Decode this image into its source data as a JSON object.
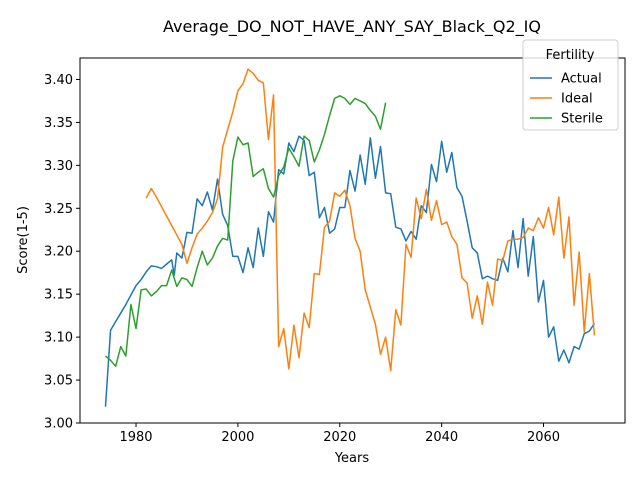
{
  "chart_data": {
    "type": "line",
    "title": "Average_DO_NOT_HAVE_ANY_SAY_Black_Q2_IQ",
    "xlabel": "Years",
    "ylabel": "Score(1-5)",
    "xlim": [
      1969,
      2076
    ],
    "ylim": [
      3.0,
      3.425
    ],
    "xticks": [
      1980,
      2000,
      2020,
      2040,
      2060
    ],
    "yticks": [
      3.0,
      3.05,
      3.1,
      3.15,
      3.2,
      3.25,
      3.3,
      3.35,
      3.4
    ],
    "grid": false,
    "legend": {
      "title": "Fertility",
      "placement": "top-right"
    },
    "series": [
      {
        "name": "Actual",
        "color": "#1f77b4",
        "points": [
          [
            1974,
            3.019
          ],
          [
            1975,
            3.108
          ],
          [
            1976,
            3.118
          ],
          [
            1977,
            3.128
          ],
          [
            1978,
            3.138
          ],
          [
            1979,
            3.149
          ],
          [
            1980,
            3.16
          ],
          [
            1981,
            3.167
          ],
          [
            1982,
            3.176
          ],
          [
            1983,
            3.183
          ],
          [
            1984,
            3.182
          ],
          [
            1985,
            3.18
          ],
          [
            1986,
            3.185
          ],
          [
            1987,
            3.19
          ],
          [
            1987.5,
            3.172
          ],
          [
            1988,
            3.198
          ],
          [
            1989,
            3.192
          ],
          [
            1990,
            3.222
          ],
          [
            1991,
            3.221
          ],
          [
            1992,
            3.261
          ],
          [
            1993,
            3.253
          ],
          [
            1994,
            3.269
          ],
          [
            1995,
            3.248
          ],
          [
            1996,
            3.284
          ],
          [
            1997,
            3.243
          ],
          [
            1998,
            3.23
          ],
          [
            1999,
            3.194
          ],
          [
            2000,
            3.194
          ],
          [
            2001,
            3.175
          ],
          [
            2002,
            3.204
          ],
          [
            2003,
            3.181
          ],
          [
            2004,
            3.227
          ],
          [
            2005,
            3.194
          ],
          [
            2006,
            3.246
          ],
          [
            2007,
            3.234
          ],
          [
            2008,
            3.295
          ],
          [
            2009,
            3.29
          ],
          [
            2010,
            3.326
          ],
          [
            2011,
            3.316
          ],
          [
            2012,
            3.334
          ],
          [
            2013,
            3.329
          ],
          [
            2014,
            3.288
          ],
          [
            2015,
            3.292
          ],
          [
            2016,
            3.239
          ],
          [
            2017,
            3.251
          ],
          [
            2018,
            3.221
          ],
          [
            2019,
            3.226
          ],
          [
            2020,
            3.251
          ],
          [
            2021,
            3.251
          ],
          [
            2022,
            3.294
          ],
          [
            2023,
            3.27
          ],
          [
            2024,
            3.312
          ],
          [
            2025,
            3.278
          ],
          [
            2026,
            3.332
          ],
          [
            2027,
            3.285
          ],
          [
            2028,
            3.322
          ],
          [
            2029,
            3.268
          ],
          [
            2030,
            3.267
          ],
          [
            2031,
            3.228
          ],
          [
            2032,
            3.226
          ],
          [
            2033,
            3.212
          ],
          [
            2034,
            3.223
          ],
          [
            2035,
            3.214
          ],
          [
            2036,
            3.253
          ],
          [
            2037,
            3.245
          ],
          [
            2038,
            3.301
          ],
          [
            2039,
            3.281
          ],
          [
            2040,
            3.328
          ],
          [
            2041,
            3.292
          ],
          [
            2042,
            3.315
          ],
          [
            2043,
            3.274
          ],
          [
            2044,
            3.264
          ],
          [
            2045,
            3.235
          ],
          [
            2046,
            3.204
          ],
          [
            2047,
            3.198
          ],
          [
            2048,
            3.168
          ],
          [
            2049,
            3.171
          ],
          [
            2050,
            3.168
          ],
          [
            2051,
            3.166
          ],
          [
            2052,
            3.192
          ],
          [
            2053,
            3.176
          ],
          [
            2054,
            3.224
          ],
          [
            2055,
            3.181
          ],
          [
            2056,
            3.238
          ],
          [
            2057,
            3.171
          ],
          [
            2058,
            3.217
          ],
          [
            2059,
            3.141
          ],
          [
            2060,
            3.166
          ],
          [
            2061,
            3.1
          ],
          [
            2062,
            3.112
          ],
          [
            2063,
            3.072
          ],
          [
            2064,
            3.085
          ],
          [
            2065,
            3.07
          ],
          [
            2066,
            3.089
          ],
          [
            2067,
            3.086
          ],
          [
            2068,
            3.104
          ],
          [
            2069,
            3.107
          ],
          [
            2070,
            3.116
          ]
        ]
      },
      {
        "name": "Ideal",
        "color": "#ff7f0e",
        "points": [
          [
            1982,
            3.262
          ],
          [
            1983,
            3.273
          ],
          [
            1984,
            3.263
          ],
          [
            1985,
            3.252
          ],
          [
            1986,
            3.241
          ],
          [
            1987,
            3.23
          ],
          [
            1988,
            3.219
          ],
          [
            1989,
            3.208
          ],
          [
            1990,
            3.186
          ],
          [
            1991,
            3.204
          ],
          [
            1992,
            3.22
          ],
          [
            1993,
            3.227
          ],
          [
            1994,
            3.235
          ],
          [
            1995,
            3.245
          ],
          [
            1996,
            3.261
          ],
          [
            1997,
            3.321
          ],
          [
            1998,
            3.342
          ],
          [
            1999,
            3.362
          ],
          [
            2000,
            3.387
          ],
          [
            2001,
            3.395
          ],
          [
            2002,
            3.412
          ],
          [
            2003,
            3.407
          ],
          [
            2004,
            3.399
          ],
          [
            2005,
            3.396
          ],
          [
            2006,
            3.33
          ],
          [
            2007,
            3.382
          ],
          [
            2008,
            3.089
          ],
          [
            2009,
            3.11
          ],
          [
            2010,
            3.063
          ],
          [
            2011,
            3.114
          ],
          [
            2012,
            3.076
          ],
          [
            2013,
            3.128
          ],
          [
            2014,
            3.111
          ],
          [
            2015,
            3.174
          ],
          [
            2016,
            3.173
          ],
          [
            2017,
            3.228
          ],
          [
            2018,
            3.235
          ],
          [
            2019,
            3.268
          ],
          [
            2020,
            3.264
          ],
          [
            2021,
            3.271
          ],
          [
            2022,
            3.253
          ],
          [
            2023,
            3.215
          ],
          [
            2024,
            3.2
          ],
          [
            2025,
            3.155
          ],
          [
            2026,
            3.135
          ],
          [
            2027,
            3.115
          ],
          [
            2028,
            3.08
          ],
          [
            2029,
            3.1
          ],
          [
            2030,
            3.061
          ],
          [
            2031,
            3.132
          ],
          [
            2032,
            3.114
          ],
          [
            2033,
            3.208
          ],
          [
            2034,
            3.193
          ],
          [
            2035,
            3.262
          ],
          [
            2036,
            3.238
          ],
          [
            2037,
            3.272
          ],
          [
            2038,
            3.236
          ],
          [
            2039,
            3.259
          ],
          [
            2040,
            3.231
          ],
          [
            2041,
            3.234
          ],
          [
            2042,
            3.217
          ],
          [
            2043,
            3.208
          ],
          [
            2044,
            3.169
          ],
          [
            2045,
            3.163
          ],
          [
            2046,
            3.122
          ],
          [
            2047,
            3.148
          ],
          [
            2048,
            3.115
          ],
          [
            2049,
            3.164
          ],
          [
            2050,
            3.137
          ],
          [
            2051,
            3.191
          ],
          [
            2052,
            3.189
          ],
          [
            2053,
            3.212
          ],
          [
            2054,
            3.214
          ],
          [
            2055,
            3.214
          ],
          [
            2056,
            3.216
          ],
          [
            2057,
            3.227
          ],
          [
            2058,
            3.224
          ],
          [
            2059,
            3.239
          ],
          [
            2060,
            3.227
          ],
          [
            2061,
            3.251
          ],
          [
            2062,
            3.219
          ],
          [
            2063,
            3.263
          ],
          [
            2064,
            3.192
          ],
          [
            2065,
            3.24
          ],
          [
            2066,
            3.137
          ],
          [
            2067,
            3.199
          ],
          [
            2068,
            3.106
          ],
          [
            2069,
            3.174
          ],
          [
            2070,
            3.102
          ]
        ]
      },
      {
        "name": "Sterile",
        "color": "#2ca02c",
        "points": [
          [
            1974,
            3.078
          ],
          [
            1975,
            3.073
          ],
          [
            1976,
            3.066
          ],
          [
            1977,
            3.089
          ],
          [
            1978,
            3.078
          ],
          [
            1979,
            3.138
          ],
          [
            1980,
            3.11
          ],
          [
            1981,
            3.155
          ],
          [
            1982,
            3.156
          ],
          [
            1983,
            3.148
          ],
          [
            1984,
            3.153
          ],
          [
            1985,
            3.16
          ],
          [
            1986,
            3.16
          ],
          [
            1987,
            3.178
          ],
          [
            1988,
            3.159
          ],
          [
            1989,
            3.169
          ],
          [
            1990,
            3.167
          ],
          [
            1991,
            3.159
          ],
          [
            1992,
            3.181
          ],
          [
            1993,
            3.2
          ],
          [
            1994,
            3.184
          ],
          [
            1995,
            3.192
          ],
          [
            1996,
            3.206
          ],
          [
            1997,
            3.215
          ],
          [
            1998,
            3.213
          ],
          [
            1999,
            3.305
          ],
          [
            2000,
            3.333
          ],
          [
            2001,
            3.324
          ],
          [
            2002,
            3.326
          ],
          [
            2003,
            3.287
          ],
          [
            2004,
            3.292
          ],
          [
            2005,
            3.296
          ],
          [
            2006,
            3.273
          ],
          [
            2007,
            3.263
          ],
          [
            2008,
            3.288
          ],
          [
            2009,
            3.298
          ],
          [
            2010,
            3.32
          ],
          [
            2011,
            3.31
          ],
          [
            2012,
            3.299
          ],
          [
            2013,
            3.334
          ],
          [
            2014,
            3.329
          ],
          [
            2015,
            3.304
          ],
          [
            2016,
            3.318
          ],
          [
            2017,
            3.336
          ],
          [
            2018,
            3.358
          ],
          [
            2019,
            3.378
          ],
          [
            2020,
            3.381
          ],
          [
            2021,
            3.378
          ],
          [
            2022,
            3.371
          ],
          [
            2023,
            3.378
          ],
          [
            2024,
            3.375
          ],
          [
            2025,
            3.372
          ],
          [
            2026,
            3.364
          ],
          [
            2027,
            3.357
          ],
          [
            2028,
            3.342
          ],
          [
            2029,
            3.373
          ]
        ]
      }
    ]
  }
}
